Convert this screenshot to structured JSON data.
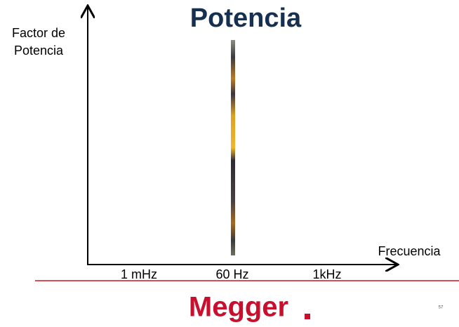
{
  "title": "Potencia",
  "y_axis_label": [
    "Factor de",
    "Potencia"
  ],
  "x_axis_label": "Frecuencia",
  "x_labels": [
    "1 mHz",
    "60 Hz",
    "1kHz"
  ],
  "logo": "Megger",
  "page_number": "57"
}
